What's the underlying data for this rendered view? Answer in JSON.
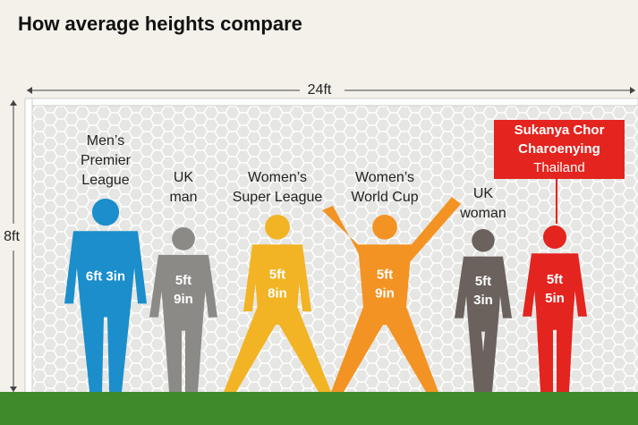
{
  "title": "How average heights compare",
  "goal": {
    "width_label": "24ft",
    "height_label": "8ft"
  },
  "figures": [
    {
      "label_lines": [
        "Men’s",
        "Premier",
        "League"
      ],
      "height_lines": [
        "6ft 3in"
      ],
      "color": "#1b8ecb"
    },
    {
      "label_lines": [
        "UK",
        "man"
      ],
      "height_lines": [
        "5ft",
        "9in"
      ],
      "color": "#8c8a87"
    },
    {
      "label_lines": [
        "Women’s",
        "Super League"
      ],
      "height_lines": [
        "5ft",
        "8in"
      ],
      "color": "#f2b424"
    },
    {
      "label_lines": [
        "Women’s",
        "World Cup"
      ],
      "height_lines": [
        "5ft",
        "9in"
      ],
      "color": "#f39323"
    },
    {
      "label_lines": [
        "UK",
        "woman"
      ],
      "height_lines": [
        "5ft",
        "3in"
      ],
      "color": "#6b625d"
    },
    {
      "label_lines": [],
      "height_lines": [
        "5ft",
        "5in"
      ],
      "color": "#e3241f"
    }
  ],
  "callout": {
    "name_lines": [
      "Sukanya Chor",
      "Charoenying"
    ],
    "country": "Thailand"
  }
}
